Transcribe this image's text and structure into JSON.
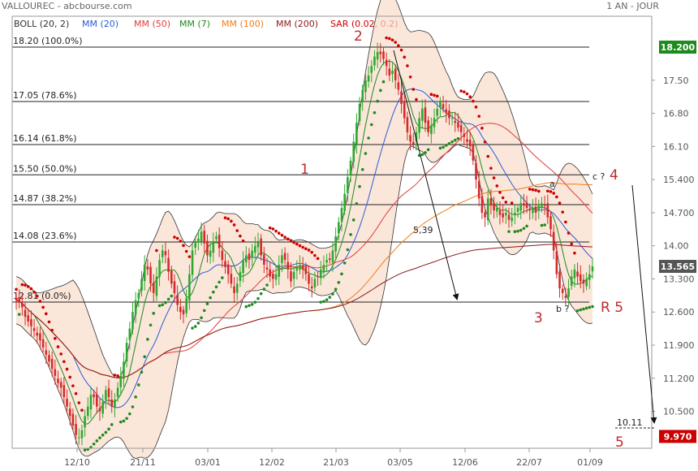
{
  "header": {
    "title": "VALLOUREC - abcbourse.com",
    "period": "1 AN - JOUR"
  },
  "indicators": [
    {
      "label": "BOLL (20, 2)",
      "color": "#333333"
    },
    {
      "label": "MM (20)",
      "color": "#2a5cd6"
    },
    {
      "label": "MM (50)",
      "color": "#e23b3b"
    },
    {
      "label": "MM (7)",
      "color": "#1e8a1e"
    },
    {
      "label": "MM (100)",
      "color": "#f07d1a"
    },
    {
      "label": "MM (200)",
      "color": "#8b1a1a"
    },
    {
      "label": "SAR (0.02, 0.2)",
      "color": "#cc0000"
    }
  ],
  "chart_data": {
    "type": "candlestick",
    "title": "VALLOUREC - abcbourse.com",
    "period": "1 AN - JOUR",
    "y_ticks": [
      17.5,
      16.8,
      16.1,
      15.4,
      14.7,
      14.0,
      13.3,
      12.6,
      11.9,
      11.2,
      10.5
    ],
    "y_tick_labels": [
      "17.50",
      "16.80",
      "16.10",
      "15.400",
      "14.700",
      "14.00",
      "13.300",
      "12.600",
      "11.900",
      "11.200",
      "10.500"
    ],
    "x_ticks": [
      "12/10",
      "21/11",
      "03/01",
      "12/02",
      "21/03",
      "03/05",
      "12/06",
      "22/07",
      "01/09"
    ],
    "price_tags": [
      {
        "label": "18.200",
        "value": 18.2,
        "color": "#1e8a1e"
      },
      {
        "label": "13.565",
        "value": 13.565,
        "color": "#555555"
      },
      {
        "label": "9.970",
        "value": 9.97,
        "color": "#cc0000"
      }
    ],
    "fibonacci": [
      {
        "label": "18.20 (100.0%)",
        "value": 18.2
      },
      {
        "label": "17.05 (78.6%)",
        "value": 17.05
      },
      {
        "label": "16.14 (61.8%)",
        "value": 16.14
      },
      {
        "label": "15.50 (50.0%)",
        "value": 15.5
      },
      {
        "label": "14.87 (38.2%)",
        "value": 14.87
      },
      {
        "label": "14.08 (23.6%)",
        "value": 14.08
      },
      {
        "label": "12.81 (0.0%)",
        "value": 12.81
      }
    ],
    "closes": [
      12.85,
      12.8,
      12.7,
      12.5,
      12.4,
      12.3,
      12.2,
      12.1,
      12.0,
      11.85,
      11.7,
      11.55,
      11.4,
      11.25,
      11.1,
      11.0,
      10.8,
      10.6,
      10.4,
      10.2,
      10.0,
      9.95,
      10.1,
      10.4,
      10.6,
      10.85,
      10.8,
      10.6,
      10.5,
      10.7,
      10.95,
      10.8,
      10.6,
      10.75,
      11.0,
      11.25,
      11.55,
      11.95,
      12.25,
      12.6,
      12.85,
      13.0,
      13.3,
      13.6,
      13.5,
      13.2,
      13.0,
      13.35,
      13.7,
      13.9,
      13.8,
      13.45,
      13.2,
      13.0,
      12.75,
      12.6,
      12.55,
      12.9,
      13.4,
      13.9,
      14.1,
      14.15,
      14.3,
      14.05,
      13.8,
      13.9,
      14.1,
      14.2,
      13.95,
      13.7,
      13.55,
      13.4,
      13.2,
      13.0,
      13.2,
      13.45,
      13.7,
      13.8,
      13.7,
      13.9,
      14.0,
      14.1,
      13.8,
      13.6,
      13.5,
      13.35,
      13.3,
      13.4,
      13.6,
      13.8,
      13.7,
      13.5,
      13.25,
      13.45,
      13.55,
      13.6,
      13.5,
      13.4,
      13.2,
      13.1,
      13.3,
      13.35,
      13.5,
      13.6,
      13.7,
      13.7,
      13.9,
      14.2,
      14.5,
      14.8,
      15.1,
      15.45,
      15.8,
      16.2,
      16.6,
      17.0,
      17.3,
      17.5,
      17.6,
      17.8,
      18.0,
      18.1,
      18.05,
      17.95,
      17.8,
      17.6,
      17.7,
      17.5,
      17.3,
      17.0,
      16.7,
      16.4,
      16.2,
      16.15,
      16.4,
      16.7,
      16.9,
      16.6,
      16.4,
      16.55,
      16.7,
      16.9,
      17.05,
      16.9,
      16.8,
      16.7,
      16.7,
      16.6,
      16.5,
      16.4,
      16.3,
      16.2,
      16.1,
      15.8,
      15.4,
      15.0,
      14.7,
      14.6,
      15.0,
      14.85,
      14.75,
      14.8,
      14.65,
      14.6,
      14.7,
      14.55,
      14.6,
      14.7,
      14.8,
      14.9,
      14.85,
      14.8,
      14.75,
      14.8,
      14.7,
      14.85,
      14.9,
      14.85,
      14.6,
      14.35,
      13.9,
      13.4,
      13.1,
      13.0,
      12.9,
      13.1,
      13.35,
      13.5,
      13.35,
      13.25,
      13.2,
      13.3,
      13.4,
      13.565
    ],
    "annotations": [
      {
        "text": "1",
        "color": "#c0282d"
      },
      {
        "text": "2",
        "color": "#c0282d"
      },
      {
        "text": "3",
        "color": "#c0282d"
      },
      {
        "text": "4",
        "color": "#c0282d"
      },
      {
        "text": "5",
        "color": "#c0282d"
      },
      {
        "text": "R 5",
        "color": "#c0282d"
      },
      {
        "text": "5,39",
        "color": "#222222"
      },
      {
        "text": "a",
        "color": "#1a2a7a"
      },
      {
        "text": "b ?",
        "color": "#1a2a7a"
      },
      {
        "text": "c ?",
        "color": "#1a2a7a"
      },
      {
        "text": "10.11",
        "color": "#222222"
      }
    ],
    "grid": false
  }
}
